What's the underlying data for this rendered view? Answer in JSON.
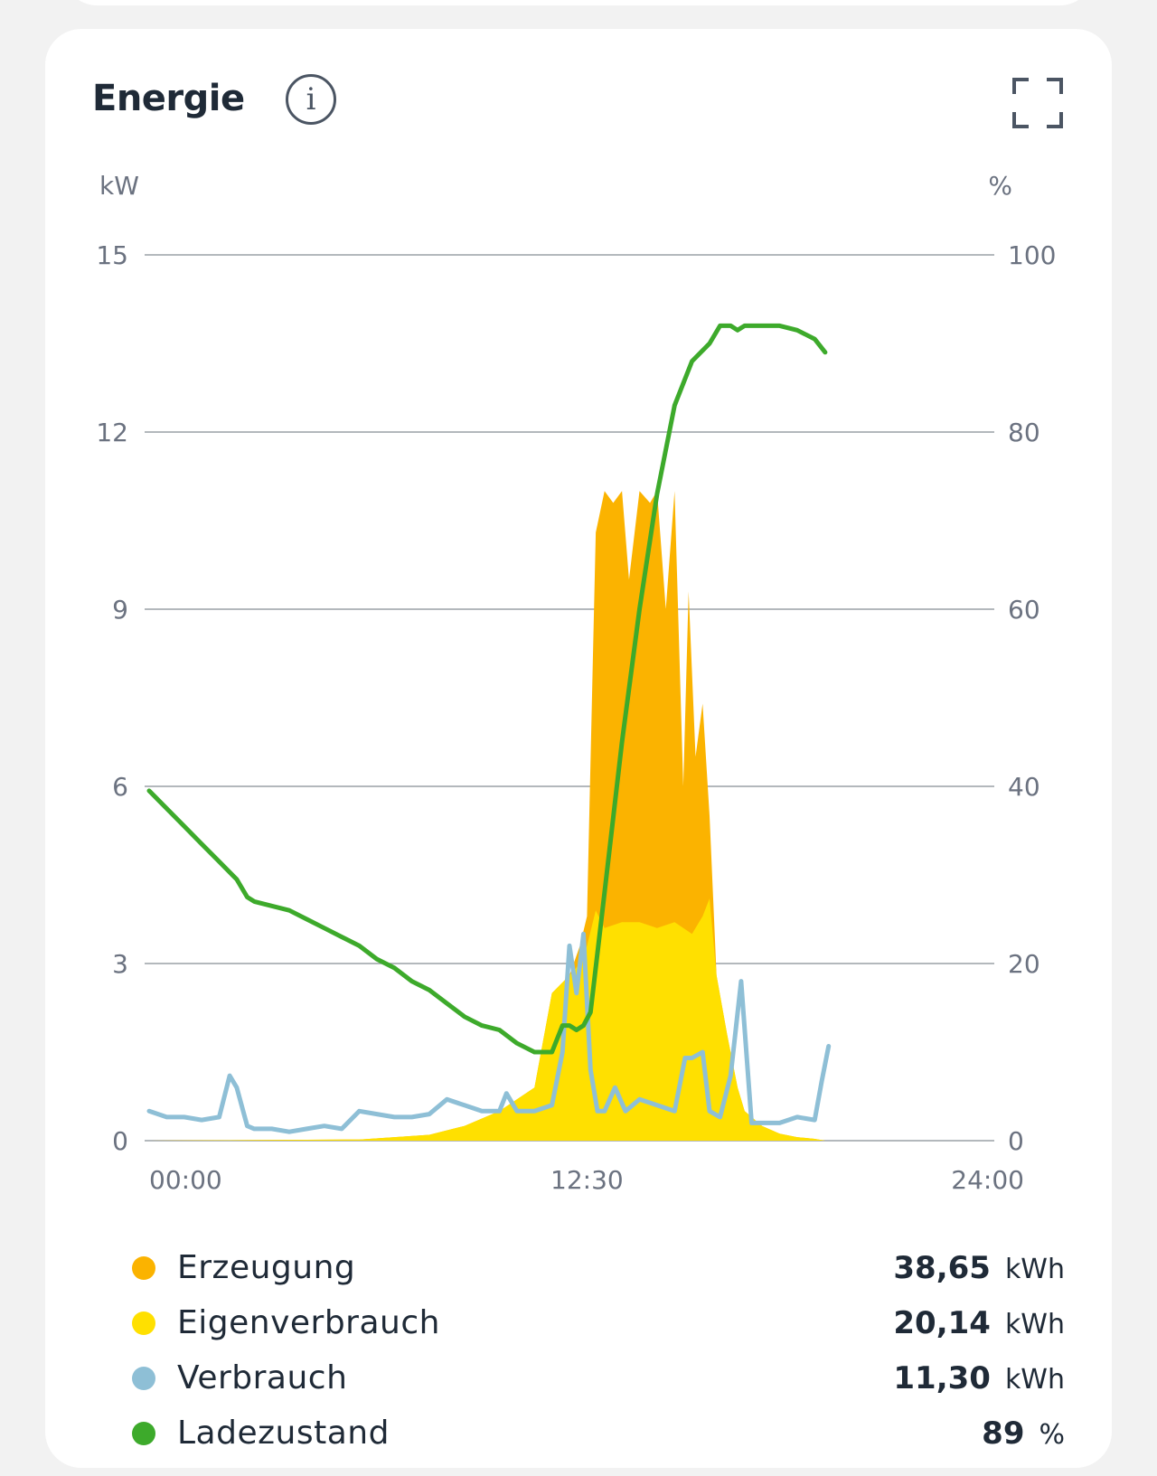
{
  "card": {
    "title": "Energie",
    "info_icon": "info-icon",
    "expand_icon": "fullscreen-icon"
  },
  "chart_data": {
    "type": "area",
    "left_axis": {
      "label": "kW",
      "ticks": [
        "0",
        "3",
        "6",
        "9",
        "12",
        "15"
      ],
      "range": [
        0,
        15
      ]
    },
    "right_axis": {
      "label": "%",
      "ticks": [
        "0",
        "20",
        "40",
        "60",
        "80",
        "100"
      ],
      "range": [
        0,
        100
      ]
    },
    "x_axis": {
      "ticks": [
        "00:00",
        "12:30",
        "24:00"
      ],
      "range_hours": [
        0,
        24
      ]
    },
    "grid": true,
    "series": [
      {
        "name": "Erzeugung",
        "color": "#FBB300",
        "axis": "left",
        "kind": "area",
        "x": [
          0,
          6,
          8,
          9,
          10,
          11,
          11.5,
          12,
          12.3,
          12.5,
          12.75,
          13,
          13.25,
          13.5,
          13.7,
          14,
          14.3,
          14.5,
          14.75,
          15,
          15.25,
          15.4,
          15.6,
          15.8,
          16,
          16.2,
          16.5,
          16.8,
          17,
          17.5,
          18,
          18.5,
          19,
          19.3
        ],
        "y": [
          0,
          0.02,
          0.1,
          0.25,
          0.5,
          0.9,
          2.5,
          2.8,
          3.3,
          3.8,
          10.3,
          11.0,
          10.8,
          11.0,
          9.5,
          11.0,
          10.8,
          11.0,
          9.0,
          11.0,
          6.0,
          9.3,
          6.5,
          7.4,
          5.5,
          2.8,
          1.8,
          0.9,
          0.5,
          0.25,
          0.12,
          0.06,
          0.03,
          0
        ]
      },
      {
        "name": "Eigenverbrauch",
        "color": "#FFE000",
        "axis": "left",
        "kind": "area",
        "x": [
          0,
          6,
          8,
          9,
          10,
          11,
          11.5,
          12,
          12.3,
          12.5,
          12.75,
          13,
          13.5,
          14,
          14.5,
          15,
          15.5,
          15.8,
          16,
          16.2,
          16.5,
          16.8,
          17,
          17.5,
          18,
          18.5,
          19,
          19.3
        ],
        "y": [
          0,
          0.02,
          0.1,
          0.25,
          0.5,
          0.9,
          2.5,
          2.8,
          3.0,
          3.3,
          3.9,
          3.6,
          3.7,
          3.7,
          3.6,
          3.7,
          3.5,
          3.8,
          4.1,
          2.8,
          1.8,
          0.9,
          0.5,
          0.25,
          0.12,
          0.06,
          0.03,
          0
        ]
      },
      {
        "name": "Verbrauch",
        "color": "#8EBFD6",
        "axis": "left",
        "kind": "line",
        "x": [
          0,
          0.5,
          1,
          1.5,
          2,
          2.3,
          2.5,
          2.8,
          3,
          3.5,
          4,
          4.5,
          5,
          5.5,
          6,
          6.5,
          7,
          7.5,
          8,
          8.5,
          9,
          9.5,
          10,
          10.2,
          10.5,
          11,
          11.5,
          11.8,
          12,
          12.2,
          12.4,
          12.6,
          12.8,
          13,
          13.3,
          13.6,
          13.8,
          14,
          14.5,
          15,
          15.3,
          15.5,
          15.8,
          16,
          16.3,
          16.6,
          16.9,
          17.2,
          17.4,
          17.6,
          17.8,
          18,
          18.5,
          19,
          19.2,
          19.4
        ],
        "y": [
          0.5,
          0.4,
          0.4,
          0.35,
          0.4,
          1.1,
          0.9,
          0.25,
          0.2,
          0.2,
          0.15,
          0.2,
          0.25,
          0.2,
          0.5,
          0.45,
          0.4,
          0.4,
          0.45,
          0.7,
          0.6,
          0.5,
          0.5,
          0.8,
          0.5,
          0.5,
          0.6,
          1.5,
          3.3,
          2.5,
          3.5,
          1.2,
          0.5,
          0.5,
          0.9,
          0.5,
          0.6,
          0.7,
          0.6,
          0.5,
          1.4,
          1.4,
          1.5,
          0.5,
          0.4,
          1.1,
          2.7,
          0.3,
          0.3,
          0.3,
          0.3,
          0.3,
          0.4,
          0.35,
          1.0,
          1.6
        ]
      },
      {
        "name": "Ladezustand",
        "color": "#3DAA2B",
        "axis": "right",
        "kind": "line",
        "x": [
          0,
          0.5,
          1,
          1.5,
          2,
          2.5,
          2.8,
          3,
          3.5,
          4,
          4.5,
          5,
          5.5,
          6,
          6.5,
          7,
          7.5,
          8,
          8.5,
          9,
          9.5,
          10,
          10.5,
          11,
          11.2,
          11.5,
          11.8,
          12,
          12.2,
          12.4,
          12.6,
          13,
          13.5,
          14,
          14.5,
          15,
          15.5,
          16,
          16.3,
          16.6,
          16.8,
          17,
          17.2,
          17.5,
          18,
          18.5,
          19,
          19.3
        ],
        "y": [
          39.5,
          37.5,
          35.5,
          33.5,
          31.5,
          29.5,
          27.5,
          27,
          26.5,
          26,
          25,
          24,
          23,
          22,
          20.5,
          19.5,
          18,
          17,
          15.5,
          14,
          13,
          12.5,
          11,
          10,
          10,
          10,
          13,
          13,
          12.5,
          13,
          14.5,
          28,
          45,
          60,
          73,
          83,
          88,
          90,
          92,
          92,
          91.5,
          92,
          92,
          92,
          92,
          91.5,
          90.5,
          89
        ]
      }
    ]
  },
  "legend": [
    {
      "name": "Erzeugung",
      "color": "#FBB300",
      "value": "38,65",
      "unit": "kWh"
    },
    {
      "name": "Eigenverbrauch",
      "color": "#FFE000",
      "value": "20,14",
      "unit": "kWh"
    },
    {
      "name": "Verbrauch",
      "color": "#8EBFD6",
      "value": "11,30",
      "unit": "kWh"
    },
    {
      "name": "Ladezustand",
      "color": "#3DAA2B",
      "value": "89",
      "unit": "%"
    }
  ]
}
